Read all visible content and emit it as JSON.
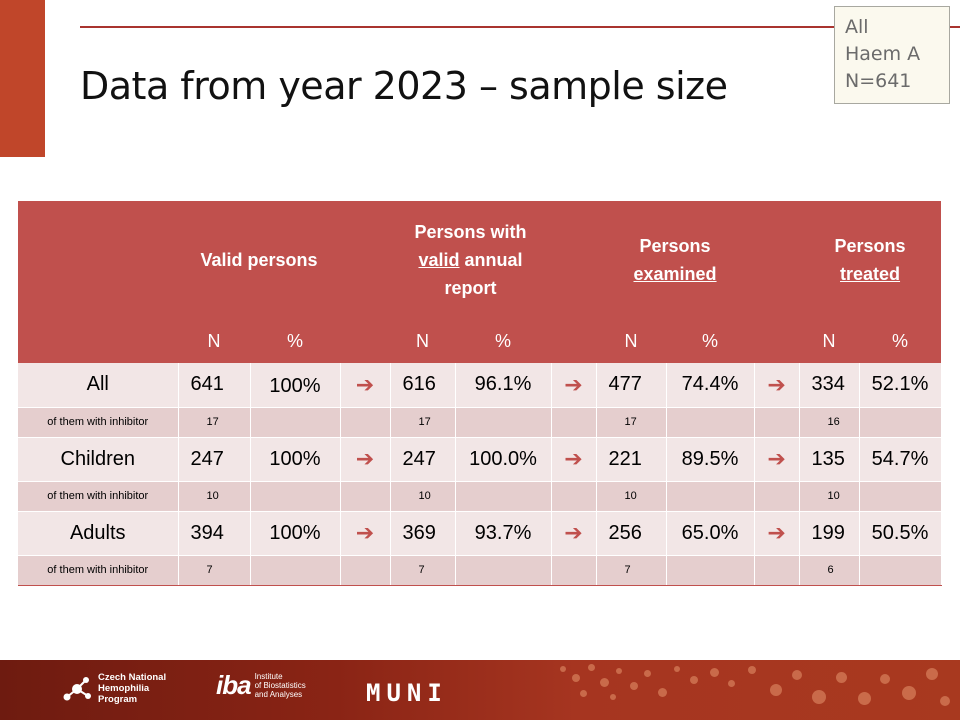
{
  "title": "Data from year 2023 – sample size",
  "info_box": {
    "lines": [
      "All",
      "Haem A",
      "N=641"
    ]
  },
  "table": {
    "groups": {
      "valid": "Valid persons",
      "annual_pre": "Persons with",
      "annual_u": "valid",
      "annual_post": "annual report",
      "examined_pre": "Persons",
      "examined_u": "examined",
      "treated_pre": "Persons",
      "treated_u": "treated"
    },
    "subheaders": {
      "n": "N",
      "pct": "%"
    },
    "arrow": "➔",
    "rows": [
      {
        "label": "All",
        "valid_n": "641",
        "valid_pct": "100%",
        "annual_n": "616",
        "annual_pct": "96.1%",
        "examined_n": "477",
        "examined_pct": "74.4%",
        "treated_n": "334",
        "treated_pct": "52.1%"
      },
      {
        "label": "of them with inhibitor",
        "valid_n": "17",
        "annual_n": "17",
        "examined_n": "17",
        "treated_n": "16"
      },
      {
        "label": "Children",
        "valid_n": "247",
        "valid_pct": "100%",
        "annual_n": "247",
        "annual_pct": "100.0%",
        "examined_n": "221",
        "examined_pct": "89.5%",
        "treated_n": "135",
        "treated_pct": "54.7%"
      },
      {
        "label": "of them with inhibitor",
        "valid_n": "10",
        "annual_n": "10",
        "examined_n": "10",
        "treated_n": "10"
      },
      {
        "label": "Adults",
        "valid_n": "394",
        "valid_pct": "100%",
        "annual_n": "369",
        "annual_pct": "93.7%",
        "examined_n": "256",
        "examined_pct": "65.0%",
        "treated_n": "199",
        "treated_pct": "50.5%"
      },
      {
        "label": "of them with inhibitor",
        "valid_n": "7",
        "annual_n": "7",
        "examined_n": "7",
        "treated_n": "6"
      }
    ]
  },
  "footer": {
    "cnhp": {
      "line1": "Czech National",
      "line2": "Hemophilia",
      "line3": "Program"
    },
    "iba": {
      "mark": "iba",
      "line1": "Institute",
      "line2": "of Biostatistics",
      "line3": "and Analyses"
    },
    "muni": "MUNI"
  },
  "colors": {
    "accent": "#c0504d",
    "row_light": "#f2e6e6",
    "row_dark": "#e5cece",
    "footer": "#8a2415"
  }
}
